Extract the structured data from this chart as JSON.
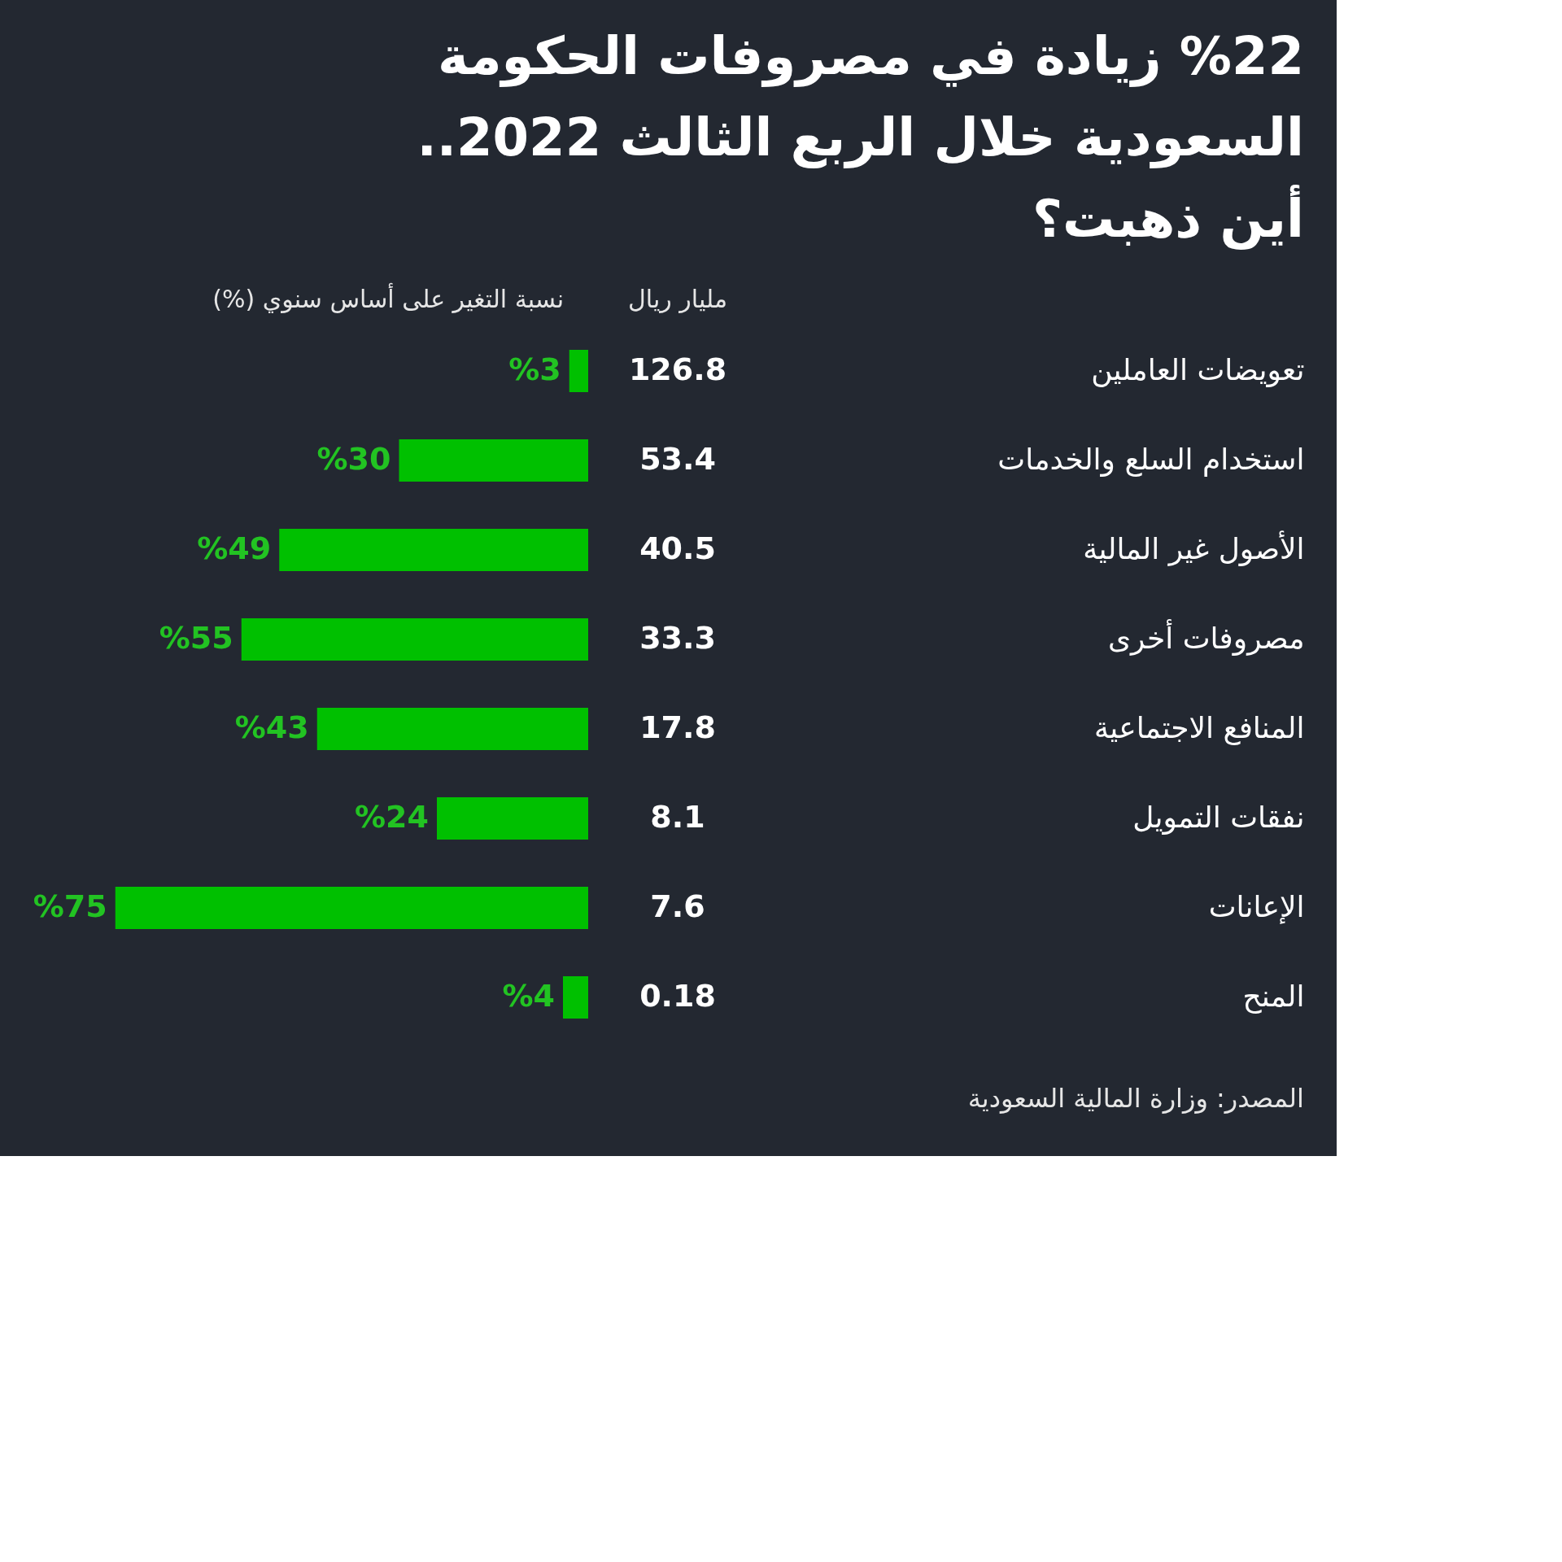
{
  "chart_data": [
    {
      "type": "other",
      "title": [
        "%22 زيادة في مصروفات الحكومة",
        "السعودية خلال الربع الثالث 2022..",
        "أين ذهبت؟"
      ],
      "xlabel": "مليار ريال",
      "values": [
        126.8,
        53.4,
        40.5,
        33.3,
        17.8,
        8.1,
        7.6,
        0.18
      ],
      "data_labels": true,
      "annotations": [
        "المصدر: وزارة المالية السعودية"
      ]
    },
    {
      "type": "bar",
      "orientation": "horizontal",
      "xlabel": "نسبة التغير على أساس سنوي (%)",
      "categories": [
        "تعويضات العاملين",
        "استخدام السلع والخدمات",
        "الأصول غير المالية",
        "مصروفات أخرى",
        "المنافع الاجتماعية",
        "نفقات التمويل",
        "الإعانات",
        "المنح"
      ],
      "values": [
        3,
        30,
        49,
        55,
        43,
        24,
        75,
        4
      ],
      "color": "#00c000",
      "value_labels": [
        "%3",
        "%30",
        "%49",
        "%55",
        "%43",
        "%24",
        "%75",
        "%4"
      ],
      "tick_labels": "y"
    }
  ]
}
